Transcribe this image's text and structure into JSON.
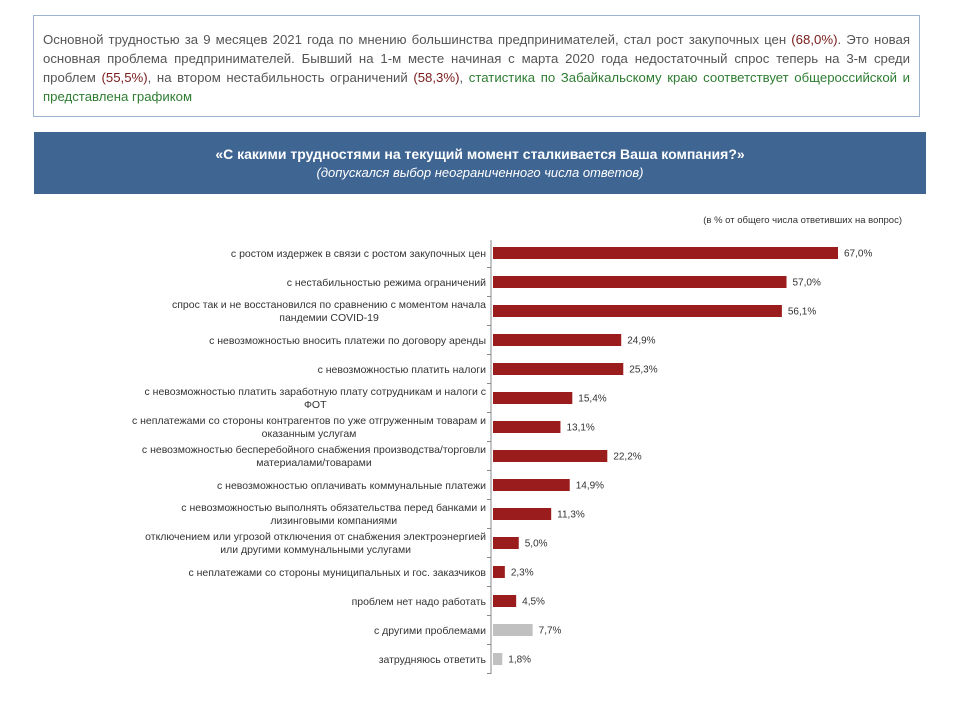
{
  "intro": {
    "parts": [
      {
        "t": "Основной трудностью за 9 месяцев 2021 года по мнению большинства предпринимателей, стал рост закупочных цен ",
        "c": "n"
      },
      {
        "t": "(68,0%)",
        "c": "hl"
      },
      {
        "t": ". Это новая основная проблема предпринимателей. Бывший на 1-м месте начиная с марта 2020 года недостаточный спрос теперь на 3-м среди проблем ",
        "c": "n"
      },
      {
        "t": "(55,5%)",
        "c": "hl"
      },
      {
        "t": ", на втором нестабильность ограничений ",
        "c": "n"
      },
      {
        "t": "(58,3%)",
        "c": "hl"
      },
      {
        "t": ", ",
        "c": "n"
      },
      {
        "t": "статистика по Забайкальскому краю соответствует общероссийской и представлена графиком",
        "c": "gr"
      }
    ]
  },
  "banner": {
    "question": "«С какими трудностями на текущий момент сталкивается Ваша компания?»",
    "subtitle": "(допускался выбор неограниченного числа ответов)"
  },
  "colors": {
    "bar": "#9b1c1c",
    "bar_other": "#c0c0c0",
    "text_gray": "#555555",
    "highlight": "#7a1c1c",
    "green": "#2e7d32",
    "banner": "#3f6593"
  },
  "chart_data": {
    "type": "bar",
    "orientation": "horizontal",
    "note": "(в % от общего числа ответивших на вопрос)",
    "xlim": [
      0,
      70
    ],
    "categories": [
      [
        "с ростом издержек в связи с ростом закупочных цен"
      ],
      [
        "с нестабильностью режима ограничений"
      ],
      [
        "спрос так и не восстановился по сравнению с моментом начала",
        "пандемии COVID-19"
      ],
      [
        "с невозможностью вносить платежи по договору аренды"
      ],
      [
        "с невозможностью платить налоги"
      ],
      [
        "с невозможностью платить заработную плату сотрудникам и налоги с",
        "ФОТ"
      ],
      [
        "с неплатежами со стороны контрагентов по уже отгруженным товарам и",
        "оказанным услугам"
      ],
      [
        "с невозможностью бесперебойного снабжения производства/торговли",
        "материалами/товарами"
      ],
      [
        "с невозможностью оплачивать коммунальные платежи"
      ],
      [
        "с невозможностью выполнять обязательства перед банками и",
        "лизинговыми компаниями"
      ],
      [
        "отключением или угрозой отключения от снабжения электроэнергией",
        "или другими коммунальными услугами"
      ],
      [
        "с неплатежами со стороны муниципальных и гос. заказчиков"
      ],
      [
        "проблем нет надо работать"
      ],
      [
        "с другими проблемами"
      ],
      [
        "затрудняюсь ответить"
      ]
    ],
    "values": [
      67.0,
      57.0,
      56.1,
      24.9,
      25.3,
      15.4,
      13.1,
      22.2,
      14.9,
      11.3,
      5.0,
      2.3,
      4.5,
      7.7,
      1.8
    ],
    "value_labels": [
      "67,0%",
      "57,0%",
      "56,1%",
      "24,9%",
      "25,3%",
      "15,4%",
      "13,1%",
      "22,2%",
      "14,9%",
      "11,3%",
      "5,0%",
      "2,3%",
      "4,5%",
      "7,7%",
      "1,8%"
    ],
    "gray_from_index": 13
  }
}
